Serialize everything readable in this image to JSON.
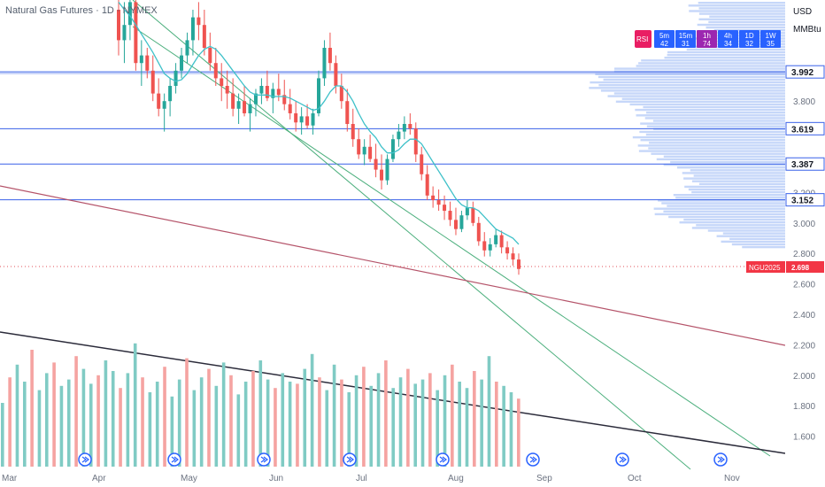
{
  "chart_data": {
    "type": "candlestick",
    "title": "Natural Gas Futures · 1D · NYMEX",
    "currency": "USD",
    "unit": "MMBtu",
    "x_axis_labels": [
      "Mar",
      "Apr",
      "May",
      "Jun",
      "Jul",
      "Aug",
      "Sep",
      "Oct",
      "Nov"
    ],
    "y_axis_ticks": [
      1.6,
      1.8,
      2.0,
      2.2,
      2.4,
      2.6,
      2.8,
      3.0,
      3.2,
      3.8
    ],
    "y_range": [
      1.45,
      4.45
    ],
    "price_levels": [
      {
        "label": "3.992",
        "value": 3.992
      },
      {
        "label": "3.619",
        "value": 3.619
      },
      {
        "label": "3.387",
        "value": 3.387
      },
      {
        "label": "3.152",
        "value": 3.152
      }
    ],
    "current_price": {
      "symbol": "NGU2025",
      "label": "2.698",
      "value": 2.698
    },
    "timeframe_panel": {
      "indicator": "RSI",
      "items": [
        {
          "tf": "5m",
          "value": "42"
        },
        {
          "tf": "15m",
          "value": "31"
        },
        {
          "tf": "1h",
          "value": "74"
        },
        {
          "tf": "4h",
          "value": "34"
        },
        {
          "tf": "1D",
          "value": "32"
        },
        {
          "tf": "1W",
          "value": "35"
        }
      ]
    },
    "candles_ohlc": [
      [
        4.4,
        4.55,
        4.1,
        4.2
      ],
      [
        4.2,
        4.45,
        4.05,
        4.3
      ],
      [
        4.3,
        4.5,
        4.2,
        4.45
      ],
      [
        4.45,
        4.55,
        4.0,
        4.05
      ],
      [
        4.05,
        4.2,
        3.9,
        4.1
      ],
      [
        4.1,
        4.15,
        3.95,
        4.0
      ],
      [
        4.0,
        4.1,
        3.8,
        3.85
      ],
      [
        3.85,
        3.95,
        3.7,
        3.75
      ],
      [
        3.75,
        3.85,
        3.6,
        3.8
      ],
      [
        3.8,
        3.95,
        3.7,
        3.9
      ],
      [
        3.9,
        4.05,
        3.85,
        4.0
      ],
      [
        4.0,
        4.15,
        3.95,
        4.1
      ],
      [
        4.1,
        4.25,
        4.05,
        4.2
      ],
      [
        4.2,
        4.4,
        4.1,
        4.35
      ],
      [
        4.35,
        4.45,
        4.2,
        4.3
      ],
      [
        4.3,
        4.4,
        4.1,
        4.15
      ],
      [
        4.15,
        4.25,
        4.0,
        4.05
      ],
      [
        4.05,
        4.15,
        3.9,
        3.95
      ],
      [
        3.95,
        4.05,
        3.8,
        3.9
      ],
      [
        3.9,
        4.0,
        3.75,
        3.85
      ],
      [
        3.85,
        3.95,
        3.7,
        3.75
      ],
      [
        3.75,
        3.85,
        3.65,
        3.8
      ],
      [
        3.8,
        3.9,
        3.7,
        3.72
      ],
      [
        3.72,
        3.82,
        3.6,
        3.78
      ],
      [
        3.78,
        3.88,
        3.7,
        3.85
      ],
      [
        3.85,
        3.95,
        3.78,
        3.9
      ],
      [
        3.9,
        4.0,
        3.8,
        3.82
      ],
      [
        3.82,
        3.92,
        3.72,
        3.88
      ],
      [
        3.88,
        3.98,
        3.8,
        3.84
      ],
      [
        3.84,
        3.94,
        3.74,
        3.78
      ],
      [
        3.78,
        3.88,
        3.68,
        3.72
      ],
      [
        3.72,
        3.8,
        3.6,
        3.66
      ],
      [
        3.66,
        3.76,
        3.58,
        3.7
      ],
      [
        3.7,
        3.78,
        3.62,
        3.64
      ],
      [
        3.64,
        3.75,
        3.58,
        3.72
      ],
      [
        3.72,
        4.0,
        3.7,
        3.95
      ],
      [
        3.95,
        4.2,
        3.9,
        4.15
      ],
      [
        4.15,
        4.25,
        4.0,
        4.05
      ],
      [
        4.05,
        4.1,
        3.85,
        3.9
      ],
      [
        3.9,
        3.98,
        3.75,
        3.8
      ],
      [
        3.8,
        3.88,
        3.6,
        3.65
      ],
      [
        3.65,
        3.75,
        3.5,
        3.55
      ],
      [
        3.55,
        3.62,
        3.42,
        3.45
      ],
      [
        3.45,
        3.55,
        3.38,
        3.5
      ],
      [
        3.5,
        3.58,
        3.4,
        3.42
      ],
      [
        3.42,
        3.52,
        3.3,
        3.35
      ],
      [
        3.35,
        3.45,
        3.22,
        3.28
      ],
      [
        3.28,
        3.45,
        3.25,
        3.42
      ],
      [
        3.42,
        3.58,
        3.4,
        3.55
      ],
      [
        3.55,
        3.65,
        3.5,
        3.6
      ],
      [
        3.6,
        3.7,
        3.55,
        3.65
      ],
      [
        3.65,
        3.72,
        3.58,
        3.62
      ],
      [
        3.62,
        3.66,
        3.4,
        3.45
      ],
      [
        3.45,
        3.5,
        3.28,
        3.32
      ],
      [
        3.32,
        3.38,
        3.15,
        3.18
      ],
      [
        3.18,
        3.24,
        3.1,
        3.15
      ],
      [
        3.15,
        3.22,
        3.08,
        3.12
      ],
      [
        3.12,
        3.18,
        3.02,
        3.08
      ],
      [
        3.08,
        3.14,
        2.98,
        3.02
      ],
      [
        3.02,
        3.1,
        2.92,
        2.96
      ],
      [
        2.96,
        3.08,
        2.94,
        3.05
      ],
      [
        3.05,
        3.15,
        3.02,
        3.1
      ],
      [
        3.1,
        3.14,
        2.98,
        3.0
      ],
      [
        3.0,
        3.04,
        2.85,
        2.88
      ],
      [
        2.88,
        2.94,
        2.78,
        2.82
      ],
      [
        2.82,
        2.9,
        2.78,
        2.86
      ],
      [
        2.86,
        2.96,
        2.84,
        2.92
      ],
      [
        2.92,
        2.95,
        2.8,
        2.84
      ],
      [
        2.84,
        2.88,
        2.76,
        2.8
      ],
      [
        2.8,
        2.84,
        2.72,
        2.76
      ],
      [
        2.76,
        2.8,
        2.66,
        2.698
      ]
    ],
    "ma_values": [
      4.45,
      4.4,
      4.36,
      4.3,
      4.24,
      4.18,
      4.12,
      4.05,
      3.98,
      3.95,
      3.93,
      3.94,
      3.98,
      4.04,
      4.1,
      4.14,
      4.16,
      4.14,
      4.1,
      4.05,
      4.0,
      3.95,
      3.9,
      3.86,
      3.84,
      3.84,
      3.84,
      3.83,
      3.83,
      3.83,
      3.82,
      3.8,
      3.78,
      3.76,
      3.74,
      3.75,
      3.8,
      3.86,
      3.9,
      3.9,
      3.86,
      3.8,
      3.72,
      3.65,
      3.6,
      3.56,
      3.5,
      3.46,
      3.46,
      3.48,
      3.52,
      3.55,
      3.55,
      3.52,
      3.46,
      3.4,
      3.34,
      3.28,
      3.22,
      3.16,
      3.12,
      3.1,
      3.1,
      3.08,
      3.04,
      3.0,
      2.96,
      2.94,
      2.92,
      2.9,
      2.86
    ],
    "volume_values": [
      3.0,
      4.2,
      4.8,
      4.0,
      5.5,
      3.6,
      4.4,
      4.9,
      3.8,
      4.1,
      5.2,
      4.6,
      3.9,
      4.3,
      5.0,
      4.5,
      3.7,
      4.4,
      5.8,
      4.2,
      3.5,
      4.0,
      4.7,
      3.3,
      4.1,
      5.1,
      3.6,
      4.2,
      4.6,
      3.8,
      4.9,
      4.3,
      3.4,
      4.0,
      4.5,
      5.0,
      4.1,
      3.7,
      4.4,
      4.0,
      3.9,
      4.6,
      5.3,
      4.2,
      3.6,
      4.8,
      4.1,
      3.5,
      4.3,
      4.7,
      3.8,
      4.4,
      5.0,
      3.7,
      4.2,
      4.6,
      3.9,
      4.1,
      4.4,
      3.6,
      4.3,
      4.8,
      4.0,
      3.7,
      4.5,
      4.1,
      5.2,
      4.0,
      3.8,
      3.5,
      3.2
    ]
  }
}
